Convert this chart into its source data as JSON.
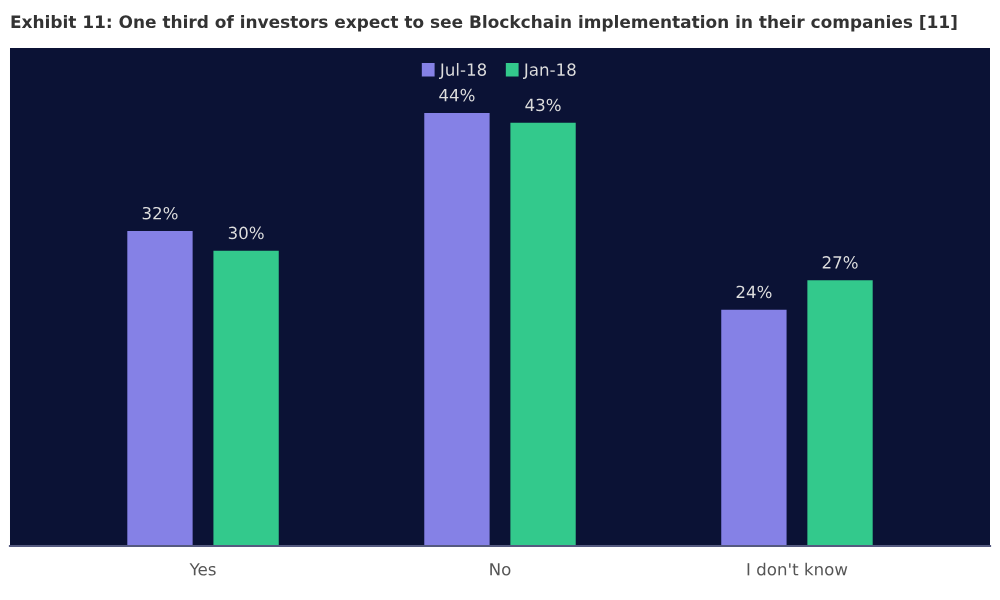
{
  "chart_data": {
    "type": "bar",
    "title": "Exhibit 11: One third of investors expect to see Blockchain implementation in their companies [11]",
    "categories": [
      "Yes",
      "No",
      "I don't know"
    ],
    "series": [
      {
        "name": "Jul-18",
        "color": "#8581e6",
        "values": [
          32,
          44,
          24
        ],
        "value_labels": [
          "32%",
          "44%",
          "24%"
        ]
      },
      {
        "name": "Jan-18",
        "color": "#33c98c",
        "values": [
          30,
          43,
          27
        ],
        "value_labels": [
          "30%",
          "43%",
          "27%"
        ]
      }
    ],
    "legend": "top",
    "grid": false
  }
}
